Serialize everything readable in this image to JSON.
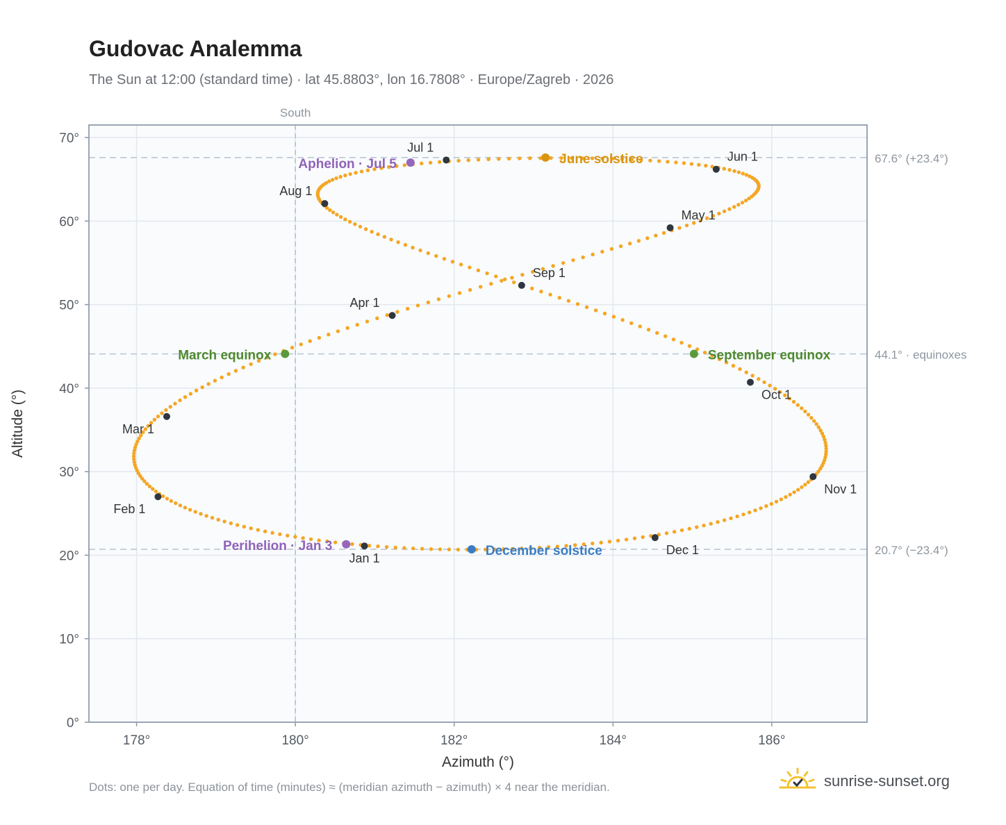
{
  "title": "Gudovac Analemma",
  "subtitle": "The Sun at 12:00 (standard time) · lat 45.8803°, lon 16.7808° · Europe/Zagreb · 2026",
  "footer": "Dots: one per day. Equation of time (minutes) ≈ (meridian azimuth − azimuth) × 4 near the meridian.",
  "brand": {
    "name": "sunrise-sunset.org",
    "icon": "sun-checkmark-icon",
    "color": "#f2c230"
  },
  "chart_data": {
    "type": "scatter",
    "xlabel": "Azimuth (°)",
    "ylabel": "Altitude (°)",
    "xlim": [
      177.4,
      187.2
    ],
    "ylim": [
      0,
      71.5
    ],
    "xticks": [
      178,
      180,
      182,
      184,
      186
    ],
    "xtick_labels": [
      "178°",
      "180°",
      "182°",
      "184°",
      "186°"
    ],
    "yticks": [
      0,
      10,
      20,
      30,
      40,
      50,
      60,
      70
    ],
    "ytick_labels": [
      "0°",
      "10°",
      "20°",
      "30°",
      "40°",
      "50°",
      "60°",
      "70°"
    ],
    "grid": true,
    "meridian": {
      "x": 180,
      "label": "South"
    },
    "reference_lines": [
      {
        "y": 67.6,
        "label": "67.6° (+23.4°)"
      },
      {
        "y": 44.1,
        "label": "44.1° · equinoxes"
      },
      {
        "y": 20.7,
        "label": "20.7° (−23.4°)"
      }
    ],
    "daily_path_color": "#f5a623",
    "daily_dots_per_year": 365,
    "month_markers": [
      {
        "label": "Jan 1",
        "x": 180.87,
        "y": 21.1,
        "pos": "below"
      },
      {
        "label": "Feb 1",
        "x": 178.27,
        "y": 27.0,
        "pos": "below-left"
      },
      {
        "label": "Mar 1",
        "x": 178.38,
        "y": 36.6,
        "pos": "below-left"
      },
      {
        "label": "Apr 1",
        "x": 181.22,
        "y": 48.7,
        "pos": "above-left"
      },
      {
        "label": "May 1",
        "x": 184.72,
        "y": 59.2,
        "pos": "above-right"
      },
      {
        "label": "Jun 1",
        "x": 185.3,
        "y": 66.2,
        "pos": "above-right"
      },
      {
        "label": "Jul 1",
        "x": 181.9,
        "y": 67.3,
        "pos": "above-left"
      },
      {
        "label": "Aug 1",
        "x": 180.37,
        "y": 62.1,
        "pos": "above-left"
      },
      {
        "label": "Sep 1",
        "x": 182.85,
        "y": 52.3,
        "pos": "above-right"
      },
      {
        "label": "Oct 1",
        "x": 185.73,
        "y": 40.7,
        "pos": "below-right"
      },
      {
        "label": "Nov 1",
        "x": 186.52,
        "y": 29.4,
        "pos": "below-right"
      },
      {
        "label": "Dec 1",
        "x": 184.53,
        "y": 22.1,
        "pos": "below-right"
      }
    ],
    "events": [
      {
        "label": "March equinox",
        "x": 179.87,
        "y": 44.1,
        "color": "#5a9a3a",
        "label_color": "#4f8a2f",
        "pos": "left"
      },
      {
        "label": "June solstice",
        "x": 183.15,
        "y": 67.6,
        "color": "#d99410",
        "label_color": "#d99410",
        "pos": "right"
      },
      {
        "label": "September equinox",
        "x": 185.02,
        "y": 44.1,
        "color": "#5a9a3a",
        "label_color": "#4f8a2f",
        "pos": "right"
      },
      {
        "label": "December solstice",
        "x": 182.22,
        "y": 20.7,
        "color": "#3b7dc4",
        "label_color": "#3b7dc4",
        "pos": "right"
      },
      {
        "label": "Perihelion · Jan 3",
        "x": 180.64,
        "y": 21.3,
        "color": "#9467bd",
        "label_color": "#8f63b8",
        "pos": "left"
      },
      {
        "label": "Aphelion · Jul 5",
        "x": 181.45,
        "y": 67.0,
        "color": "#9467bd",
        "label_color": "#8f63b8",
        "pos": "left"
      }
    ]
  }
}
